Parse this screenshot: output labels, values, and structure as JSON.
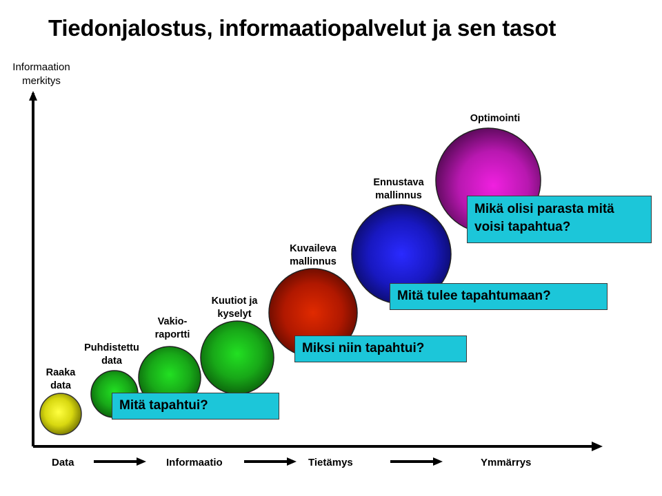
{
  "title": "Tiedonjalostus, informaatiopalvelut ja sen tasot",
  "y_axis_label": "Informaation\nmerkitys",
  "stages": [
    {
      "id": "raaka-data",
      "label": "Raaka\ndata",
      "color": "#e8e81a"
    },
    {
      "id": "puhdistettu-data",
      "label": "Puhdistettu\ndata",
      "color": "#1db51d"
    },
    {
      "id": "vakioraportti",
      "label": "Vakio-\nraportti",
      "color": "#1db51d"
    },
    {
      "id": "kuutiot-ja-kyselyt",
      "label": "Kuutiot ja\nkyselyt",
      "color": "#1db51d"
    },
    {
      "id": "kuvaileva-mallinnus",
      "label": "Kuvaileva\nmallinnus",
      "color": "#c81a00"
    },
    {
      "id": "ennustava-mallinnus",
      "label": "Ennustava\nmallinnus",
      "color": "#1a1ad0"
    },
    {
      "id": "optimointi",
      "label": "Optimointi",
      "color": "#c81ac8"
    }
  ],
  "callouts": [
    {
      "id": "mita-tapahtui",
      "text": "Mitä tapahtui?"
    },
    {
      "id": "miksi-niin-tapahtui",
      "text": "Miksi niin tapahtui?"
    },
    {
      "id": "mita-tulee-tapahtumaan",
      "text": "Mitä tulee tapahtumaan?"
    },
    {
      "id": "mika-olisi-parasta",
      "text": "Mikä olisi parasta mitä\nvoisi tapahtua?"
    }
  ],
  "x_axis_categories": [
    "Data",
    "Informaatio",
    "Tietämys",
    "Ymmärrys"
  ],
  "colors": {
    "callout_bg": "#1cc6d9",
    "axis": "#000000"
  }
}
